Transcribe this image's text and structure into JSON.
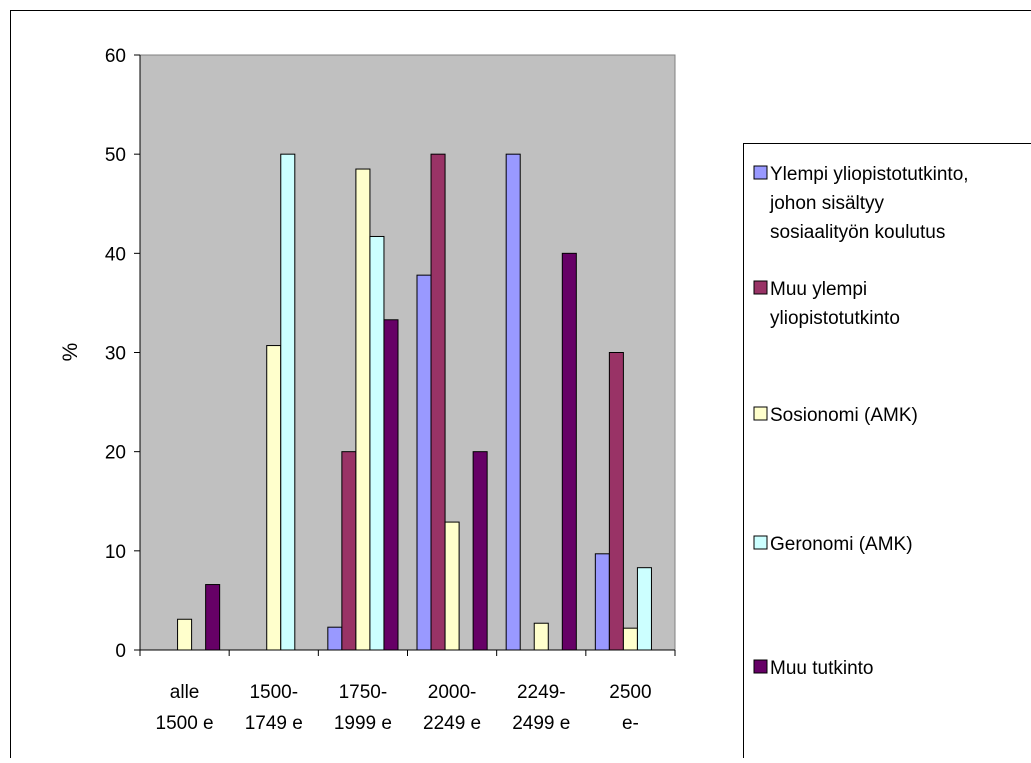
{
  "chart_data": {
    "type": "bar",
    "title": "",
    "xlabel": "",
    "ylabel": "%",
    "ylim": [
      0,
      60
    ],
    "yticks": [
      0,
      10,
      20,
      30,
      40,
      50,
      60
    ],
    "grid": false,
    "legend_position": "right",
    "plot_background": "#c0c0c0",
    "categories": [
      [
        "alle",
        "1500 e"
      ],
      [
        "1500-",
        "1749 e"
      ],
      [
        "1750-",
        "1999 e"
      ],
      [
        "2000-",
        "2249 e"
      ],
      [
        "2249-",
        "2499 e"
      ],
      [
        "2500",
        "e-"
      ]
    ],
    "series": [
      {
        "name": [
          "Ylempi yliopistotutkinto,",
          "johon sisältyy",
          "sosiaalityön koulutus"
        ],
        "color": "#9999ff",
        "values": [
          0,
          0,
          2.3,
          37.8,
          50,
          9.7
        ]
      },
      {
        "name": [
          "Muu ylempi",
          "yliopistotutkinto"
        ],
        "color": "#993366",
        "values": [
          0,
          0,
          20,
          50,
          0,
          30
        ]
      },
      {
        "name": [
          "Sosionomi (AMK)"
        ],
        "color": "#ffffcc",
        "values": [
          3.1,
          30.7,
          48.5,
          12.9,
          2.7,
          2.2
        ]
      },
      {
        "name": [
          "Geronomi (AMK)"
        ],
        "color": "#ccffff",
        "values": [
          0,
          50,
          41.7,
          0,
          0,
          8.3
        ]
      },
      {
        "name": [
          "Muu tutkinto"
        ],
        "color": "#660066",
        "values": [
          6.6,
          0,
          33.3,
          20,
          40,
          0
        ]
      }
    ]
  }
}
